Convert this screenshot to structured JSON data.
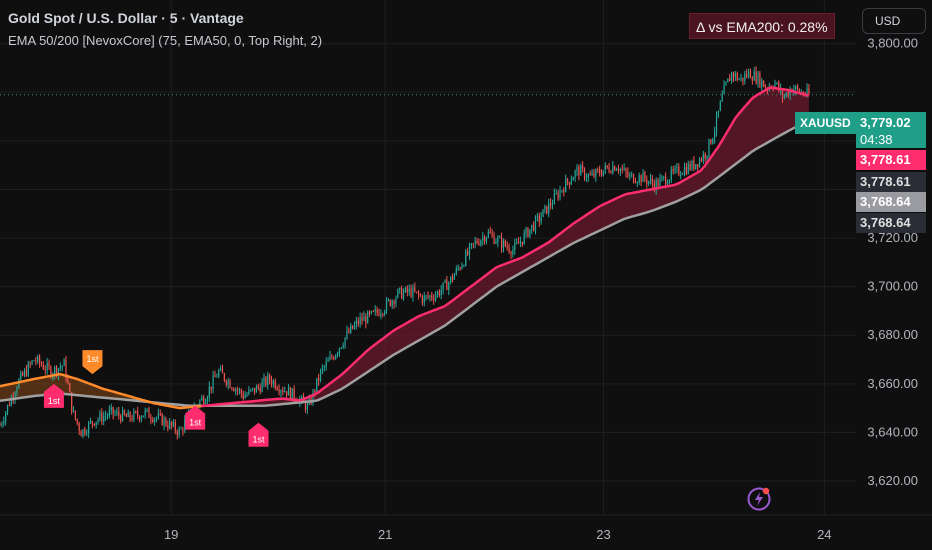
{
  "header": {
    "title": "Gold Spot / U.S. Dollar · 5 · Vantage",
    "indicator": "EMA 50/200 [NevoxCore] (75, EMA50, 0, Top Right, 2)",
    "currency_button": "USD"
  },
  "overlay": {
    "delta_text": "Δ vs EMA200: 0.28%"
  },
  "price_labels": {
    "symbol": "XAUUSD",
    "last": "3,779.02",
    "countdown": "04:38",
    "ema50_a": "3,778.61",
    "ema50_b": "3,778.61",
    "ema200_a": "3,768.64",
    "ema200_b": "3,768.64"
  },
  "colors": {
    "background": "#0f0f0f",
    "bull": "#26a69a",
    "bear": "#ef5350",
    "ema50_up": "#ff2d6e",
    "ema50_down": "#ff8a2a",
    "ema200": "#a0a0a0",
    "fill_up": "#6b1a2e",
    "fill_down": "#8a4a1a",
    "marker_pink": "#ff2d6e",
    "marker_orange": "#ff8a2a"
  },
  "chart_data": {
    "type": "line",
    "title": "Gold Spot / U.S. Dollar · 5 · Vantage",
    "xlabel": "",
    "ylabel": "",
    "ylim": [
      3606,
      3818
    ],
    "y_ticks": [
      3620,
      3640,
      3660,
      3680,
      3700,
      3720,
      3740,
      3760,
      3780,
      3800
    ],
    "y_tick_labels": [
      "3,620.00",
      "3,640.00",
      "3,660.00",
      "3,680.00",
      "3,700.00",
      "3,720.00",
      "",
      "",
      "",
      "3,800.00"
    ],
    "x_ticks": [
      {
        "t": 0.2,
        "label": "19"
      },
      {
        "t": 0.45,
        "label": "21"
      },
      {
        "t": 0.705,
        "label": "23"
      },
      {
        "t": 0.963,
        "label": "24"
      }
    ],
    "current_price": 3779.02,
    "series": [
      {
        "name": "Price",
        "points": [
          [
            0,
            3643
          ],
          [
            0.02,
            3660
          ],
          [
            0.04,
            3670
          ],
          [
            0.06,
            3665
          ],
          [
            0.075,
            3668
          ],
          [
            0.085,
            3648
          ],
          [
            0.095,
            3640
          ],
          [
            0.11,
            3645
          ],
          [
            0.13,
            3648
          ],
          [
            0.15,
            3646
          ],
          [
            0.17,
            3648
          ],
          [
            0.19,
            3645
          ],
          [
            0.21,
            3640
          ],
          [
            0.225,
            3650
          ],
          [
            0.24,
            3655
          ],
          [
            0.255,
            3665
          ],
          [
            0.27,
            3660
          ],
          [
            0.285,
            3655
          ],
          [
            0.3,
            3658
          ],
          [
            0.315,
            3662
          ],
          [
            0.33,
            3658
          ],
          [
            0.345,
            3655
          ],
          [
            0.36,
            3650
          ],
          [
            0.375,
            3665
          ],
          [
            0.39,
            3672
          ],
          [
            0.405,
            3680
          ],
          [
            0.42,
            3686
          ],
          [
            0.435,
            3688
          ],
          [
            0.45,
            3692
          ],
          [
            0.465,
            3697
          ],
          [
            0.48,
            3698
          ],
          [
            0.495,
            3695
          ],
          [
            0.51,
            3697
          ],
          [
            0.525,
            3702
          ],
          [
            0.54,
            3710
          ],
          [
            0.555,
            3718
          ],
          [
            0.57,
            3722
          ],
          [
            0.585,
            3718
          ],
          [
            0.6,
            3715
          ],
          [
            0.615,
            3722
          ],
          [
            0.63,
            3728
          ],
          [
            0.645,
            3735
          ],
          [
            0.66,
            3742
          ],
          [
            0.675,
            3748
          ],
          [
            0.69,
            3745
          ],
          [
            0.705,
            3748
          ],
          [
            0.72,
            3750
          ],
          [
            0.735,
            3745
          ],
          [
            0.75,
            3745
          ],
          [
            0.765,
            3742
          ],
          [
            0.78,
            3745
          ],
          [
            0.795,
            3748
          ],
          [
            0.81,
            3750
          ],
          [
            0.825,
            3755
          ],
          [
            0.835,
            3765
          ],
          [
            0.845,
            3780
          ],
          [
            0.855,
            3788
          ],
          [
            0.865,
            3785
          ],
          [
            0.875,
            3788
          ],
          [
            0.885,
            3786
          ],
          [
            0.895,
            3782
          ],
          [
            0.905,
            3784
          ],
          [
            0.915,
            3778
          ],
          [
            0.925,
            3782
          ],
          [
            0.935,
            3780
          ],
          [
            0.945,
            3779
          ]
        ]
      },
      {
        "name": "EMA50",
        "points": [
          [
            0,
            3659
          ],
          [
            0.04,
            3662
          ],
          [
            0.07,
            3664
          ],
          [
            0.09,
            3662
          ],
          [
            0.12,
            3658
          ],
          [
            0.15,
            3655
          ],
          [
            0.18,
            3652
          ],
          [
            0.21,
            3650
          ],
          [
            0.24,
            3651
          ],
          [
            0.27,
            3652
          ],
          [
            0.3,
            3653
          ],
          [
            0.33,
            3654
          ],
          [
            0.35,
            3653
          ],
          [
            0.37,
            3656
          ],
          [
            0.4,
            3664
          ],
          [
            0.43,
            3674
          ],
          [
            0.46,
            3682
          ],
          [
            0.49,
            3688
          ],
          [
            0.52,
            3692
          ],
          [
            0.55,
            3700
          ],
          [
            0.58,
            3708
          ],
          [
            0.61,
            3712
          ],
          [
            0.64,
            3718
          ],
          [
            0.67,
            3726
          ],
          [
            0.7,
            3733
          ],
          [
            0.73,
            3738
          ],
          [
            0.76,
            3740
          ],
          [
            0.79,
            3742
          ],
          [
            0.82,
            3748
          ],
          [
            0.84,
            3758
          ],
          [
            0.86,
            3770
          ],
          [
            0.88,
            3778
          ],
          [
            0.9,
            3782
          ],
          [
            0.92,
            3781
          ],
          [
            0.945,
            3778.61
          ]
        ]
      },
      {
        "name": "EMA200",
        "points": [
          [
            0,
            3653
          ],
          [
            0.04,
            3655
          ],
          [
            0.07,
            3656
          ],
          [
            0.1,
            3655
          ],
          [
            0.13,
            3654
          ],
          [
            0.16,
            3653
          ],
          [
            0.19,
            3652
          ],
          [
            0.22,
            3651
          ],
          [
            0.25,
            3651
          ],
          [
            0.28,
            3651
          ],
          [
            0.31,
            3651
          ],
          [
            0.34,
            3652
          ],
          [
            0.37,
            3653
          ],
          [
            0.4,
            3658
          ],
          [
            0.43,
            3665
          ],
          [
            0.46,
            3672
          ],
          [
            0.49,
            3678
          ],
          [
            0.52,
            3684
          ],
          [
            0.55,
            3692
          ],
          [
            0.58,
            3700
          ],
          [
            0.61,
            3706
          ],
          [
            0.64,
            3712
          ],
          [
            0.67,
            3718
          ],
          [
            0.7,
            3723
          ],
          [
            0.73,
            3728
          ],
          [
            0.76,
            3731
          ],
          [
            0.79,
            3735
          ],
          [
            0.82,
            3740
          ],
          [
            0.85,
            3748
          ],
          [
            0.88,
            3756
          ],
          [
            0.91,
            3762
          ],
          [
            0.945,
            3768.64
          ]
        ]
      }
    ],
    "markers": [
      {
        "t": 0.063,
        "price": 3660,
        "label": "1st",
        "color": "pink",
        "dir": "up"
      },
      {
        "t": 0.108,
        "price": 3664,
        "label": "1st",
        "color": "orange",
        "dir": "down"
      },
      {
        "t": 0.228,
        "price": 3651,
        "label": "1st",
        "color": "pink",
        "dir": "up"
      },
      {
        "t": 0.302,
        "price": 3644,
        "label": "1st",
        "color": "pink",
        "dir": "up"
      }
    ]
  }
}
